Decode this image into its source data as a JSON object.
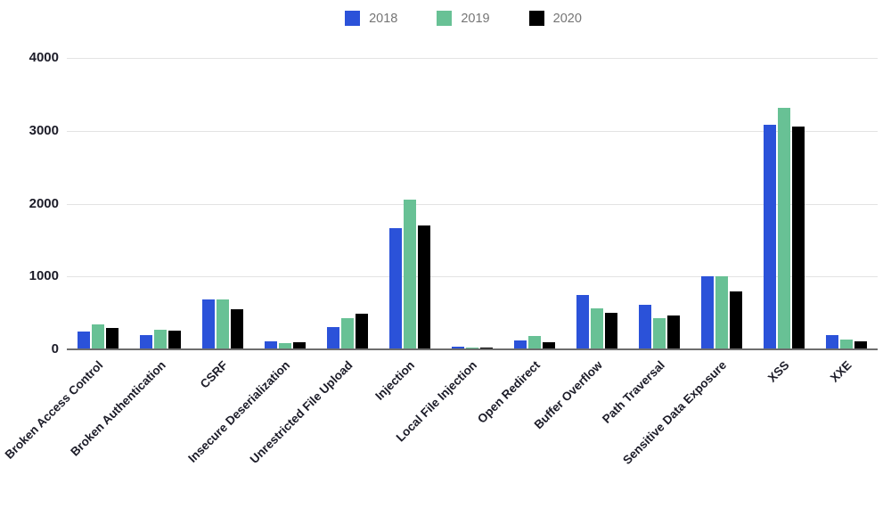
{
  "chart_data": {
    "type": "bar",
    "title": "",
    "xlabel": "",
    "ylabel": "",
    "categories": [
      "Broken Access Control",
      "Broken Authentication",
      "CSRF",
      "Insecure Deserialization",
      "Unrestricted File Upload",
      "Injection",
      "Local File Injection",
      "Open Redirect",
      "Buffer Overflow",
      "Path Traversal",
      "Sensitive Data Exposure",
      "XSS",
      "XXE"
    ],
    "series": [
      {
        "name": "2018",
        "color": "#2b52d9",
        "values": [
          240,
          200,
          690,
          110,
          310,
          1660,
          40,
          120,
          750,
          610,
          1000,
          3080,
          190
        ]
      },
      {
        "name": "2019",
        "color": "#68c195",
        "values": [
          340,
          270,
          690,
          90,
          430,
          2060,
          25,
          185,
          560,
          425,
          1005,
          3320,
          130
        ]
      },
      {
        "name": "2020",
        "color": "#000000",
        "values": [
          290,
          260,
          545,
          100,
          490,
          1700,
          25,
          100,
          500,
          465,
          800,
          3060,
          110
        ]
      }
    ],
    "ylim": [
      0,
      4000
    ],
    "yticks": [
      0,
      1000,
      2000,
      3000,
      4000
    ],
    "grid": "horizontal",
    "legend_position": "top",
    "x_label_rotation_deg": -45
  },
  "colors": {
    "background": "#ffffff",
    "gridline": "#e3e3e3",
    "axis_line": "#6e6e6e",
    "tick_text": "#1c1c28",
    "legend_text": "#757575"
  }
}
